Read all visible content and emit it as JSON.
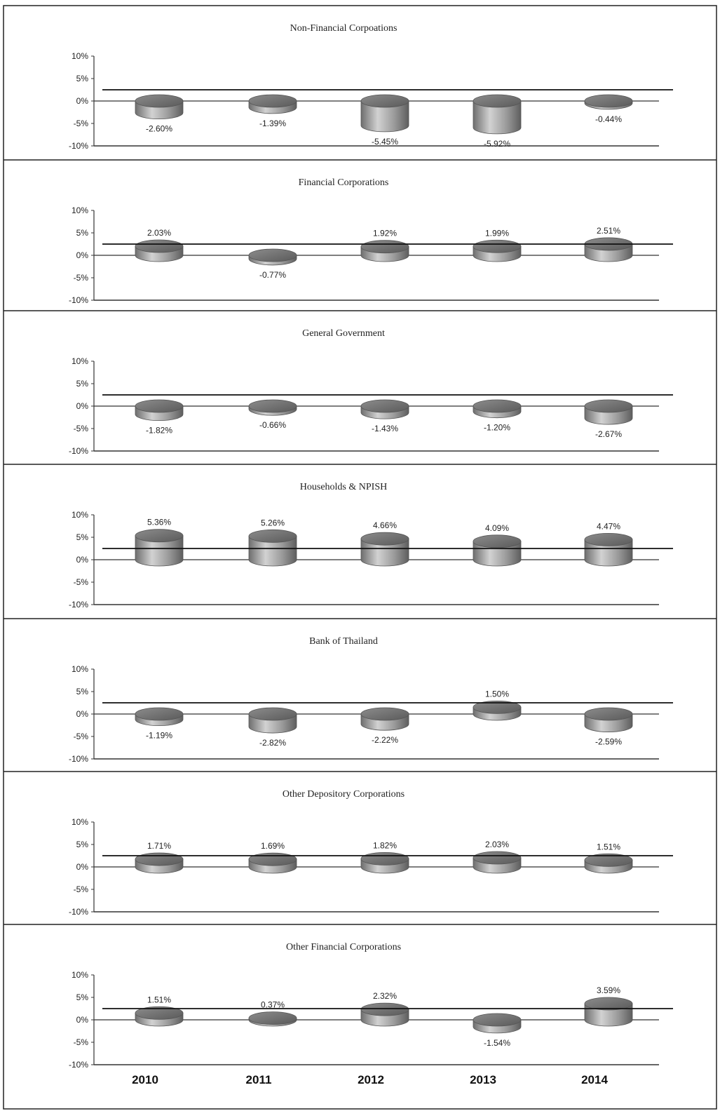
{
  "chart_data": [
    {
      "type": "bar",
      "title": "Non-Financial Corpoations",
      "categories": [
        "2010",
        "2011",
        "2012",
        "2013",
        "2014"
      ],
      "values": [
        -2.6,
        -1.39,
        -5.45,
        -5.92,
        -0.44
      ],
      "labels": [
        "-2.60%",
        "-1.39%",
        "-5.45%",
        "-5.92%",
        "-0.44%"
      ],
      "reference_line": 2.5,
      "ylim": [
        -10,
        10
      ],
      "yticks": [
        "10%",
        "5%",
        "0%",
        "-5%",
        "-10%"
      ]
    },
    {
      "type": "bar",
      "title": "Financial Corporations",
      "categories": [
        "2010",
        "2011",
        "2012",
        "2013",
        "2014"
      ],
      "values": [
        2.03,
        -0.77,
        1.92,
        1.99,
        2.51
      ],
      "labels": [
        "2.03%",
        "-0.77%",
        "1.92%",
        "1.99%",
        "2.51%"
      ],
      "reference_line": 2.5,
      "ylim": [
        -10,
        10
      ],
      "yticks": [
        "10%",
        "5%",
        "0%",
        "-5%",
        "-10%"
      ]
    },
    {
      "type": "bar",
      "title": "General  Government",
      "categories": [
        "2010",
        "2011",
        "2012",
        "2013",
        "2014"
      ],
      "values": [
        -1.82,
        -0.66,
        -1.43,
        -1.2,
        -2.67
      ],
      "labels": [
        "-1.82%",
        "-0.66%",
        "-1.43%",
        "-1.20%",
        "-2.67%"
      ],
      "reference_line": 2.5,
      "ylim": [
        -10,
        10
      ],
      "yticks": [
        "10%",
        "5%",
        "0%",
        "-5%",
        "-10%"
      ]
    },
    {
      "type": "bar",
      "title": "Households  &  NPISH",
      "categories": [
        "2010",
        "2011",
        "2012",
        "2013",
        "2014"
      ],
      "values": [
        5.36,
        5.26,
        4.66,
        4.09,
        4.47
      ],
      "labels": [
        "5.36%",
        "5.26%",
        "4.66%",
        "4.09%",
        "4.47%"
      ],
      "reference_line": 2.5,
      "ylim": [
        -10,
        10
      ],
      "yticks": [
        "10%",
        "5%",
        "0%",
        "-5%",
        "-10%"
      ]
    },
    {
      "type": "bar",
      "title": "Bank of Thailand",
      "categories": [
        "2010",
        "2011",
        "2012",
        "2013",
        "2014"
      ],
      "values": [
        -1.19,
        -2.82,
        -2.22,
        1.5,
        -2.59
      ],
      "labels": [
        "-1.19%",
        "-2.82%",
        "-2.22%",
        "1.50%",
        "-2.59%"
      ],
      "reference_line": 2.5,
      "ylim": [
        -10,
        10
      ],
      "yticks": [
        "10%",
        "5%",
        "0%",
        "-5%",
        "-10%"
      ]
    },
    {
      "type": "bar",
      "title": "Other Depository Corporations",
      "categories": [
        "2010",
        "2011",
        "2012",
        "2013",
        "2014"
      ],
      "values": [
        1.71,
        1.69,
        1.82,
        2.03,
        1.51
      ],
      "labels": [
        "1.71%",
        "1.69%",
        "1.82%",
        "2.03%",
        "1.51%"
      ],
      "reference_line": 2.5,
      "ylim": [
        -10,
        10
      ],
      "yticks": [
        "10%",
        "5%",
        "0%",
        "-5%",
        "-10%"
      ]
    },
    {
      "type": "bar",
      "title": "Other Financial Corporations",
      "categories": [
        "2010",
        "2011",
        "2012",
        "2013",
        "2014"
      ],
      "values": [
        1.51,
        0.37,
        2.32,
        -1.54,
        3.59
      ],
      "labels": [
        "1.51%",
        "0.37%",
        "2.32%",
        "-1.54%",
        "3.59%"
      ],
      "reference_line": 2.5,
      "ylim": [
        -10,
        10
      ],
      "yticks": [
        "10%",
        "5%",
        "0%",
        "-5%",
        "-10%"
      ]
    }
  ],
  "x_axis": {
    "years": [
      "2010",
      "2011",
      "2012",
      "2013",
      "2014"
    ]
  },
  "colors": {
    "bar_fill": "#8a8a8a",
    "bar_top": "#6f6f6f",
    "bar_side_light": "#c9c9c9",
    "line": "#111111",
    "frame": "#222222"
  }
}
